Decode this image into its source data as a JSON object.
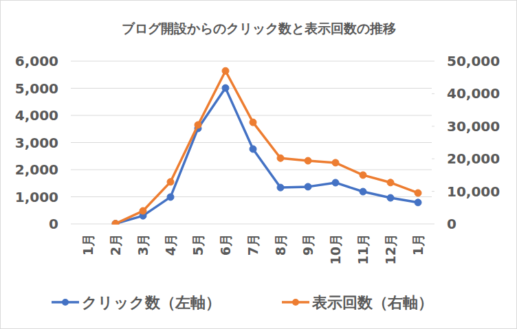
{
  "chart_data": {
    "type": "line",
    "title": "ブログ開設からのクリック数と表示回数の推移",
    "categories": [
      "1月",
      "2月",
      "3月",
      "4月",
      "5月",
      "6月",
      "7月",
      "8月",
      "9月",
      "10月",
      "11月",
      "12月",
      "1月"
    ],
    "series": [
      {
        "name": "クリック数（左軸）",
        "color": "#4472c4",
        "marker": "circle",
        "axis": "y",
        "values": [
          null,
          10,
          300,
          990,
          3520,
          5010,
          2760,
          1340,
          1370,
          1520,
          1190,
          960,
          790
        ]
      },
      {
        "name": "表示回数（右軸）",
        "color": "#ed7d31",
        "marker": "circle",
        "axis": "y2",
        "values": [
          null,
          100,
          4000,
          12900,
          30400,
          47000,
          31200,
          20200,
          19400,
          18800,
          15000,
          12700,
          9500
        ]
      }
    ],
    "ylim": [
      0,
      6000
    ],
    "yticks": [
      0,
      {
        "value": 1000,
        "label": "1,000"
      },
      {
        "value": 2000,
        "label": "2,000"
      },
      {
        "value": 3000,
        "label": "3,000"
      },
      {
        "value": 4000,
        "label": "4,000"
      },
      {
        "value": 5000,
        "label": "5,000"
      },
      {
        "value": 6000,
        "label": "6,000"
      }
    ],
    "y2lim": [
      0,
      50000
    ],
    "y2ticks": [
      0,
      {
        "value": 10000,
        "label": "10,000"
      },
      {
        "value": 20000,
        "label": "20,000"
      },
      {
        "value": 30000,
        "label": "30,000"
      },
      {
        "value": 40000,
        "label": "40,000"
      },
      {
        "value": 50000,
        "label": "50,000"
      }
    ],
    "grid": true,
    "legend": "bottom"
  }
}
